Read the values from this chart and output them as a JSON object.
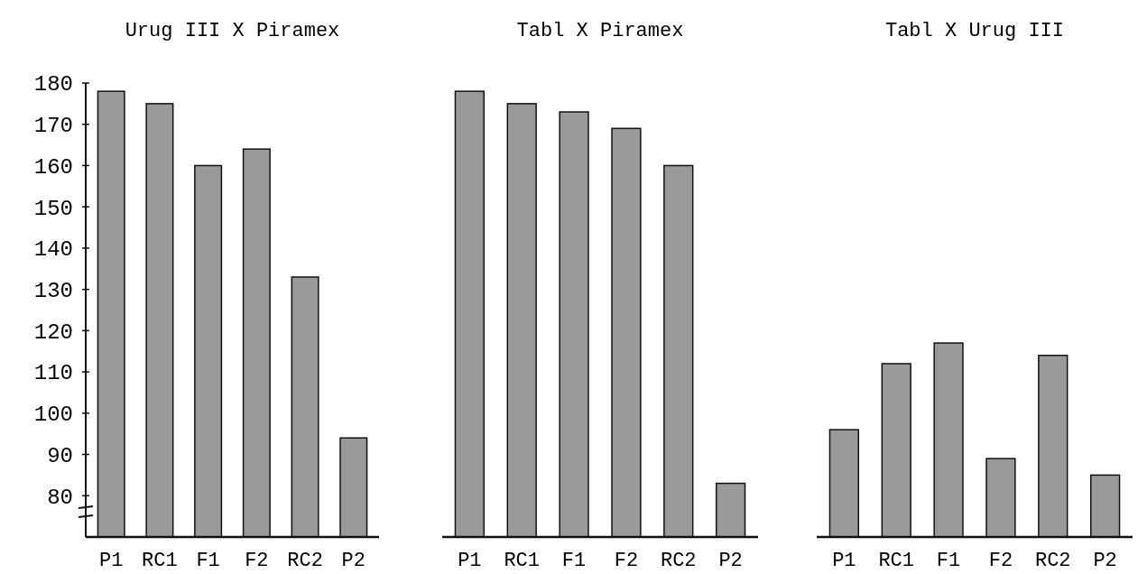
{
  "chart_data": [
    {
      "type": "bar",
      "title": "Urug III X Piramex",
      "categories": [
        "P1",
        "RC1",
        "F1",
        "F2",
        "RC2",
        "P2"
      ],
      "values": [
        178,
        175,
        160,
        164,
        133,
        94
      ],
      "color": "#9a9a9a",
      "ylim": [
        70,
        180
      ],
      "yticks": [
        80,
        90,
        100,
        110,
        120,
        130,
        140,
        150,
        160,
        170,
        180
      ],
      "grid": false
    },
    {
      "type": "bar",
      "title": "Tabl X Piramex",
      "categories": [
        "P1",
        "RC1",
        "F1",
        "F2",
        "RC2",
        "P2"
      ],
      "values": [
        178,
        175,
        173,
        169,
        160,
        83
      ],
      "color": "#9a9a9a",
      "ylim": [
        70,
        180
      ],
      "grid": false,
      "tick_labels": "x"
    },
    {
      "type": "bar",
      "title": "Tabl X Urug III",
      "categories": [
        "P1",
        "RC1",
        "F1",
        "F2",
        "RC2",
        "P2"
      ],
      "values": [
        96,
        112,
        117,
        89,
        114,
        85
      ],
      "color": "#9a9a9a",
      "ylim": [
        70,
        180
      ],
      "grid": false,
      "tick_labels": "x"
    }
  ]
}
